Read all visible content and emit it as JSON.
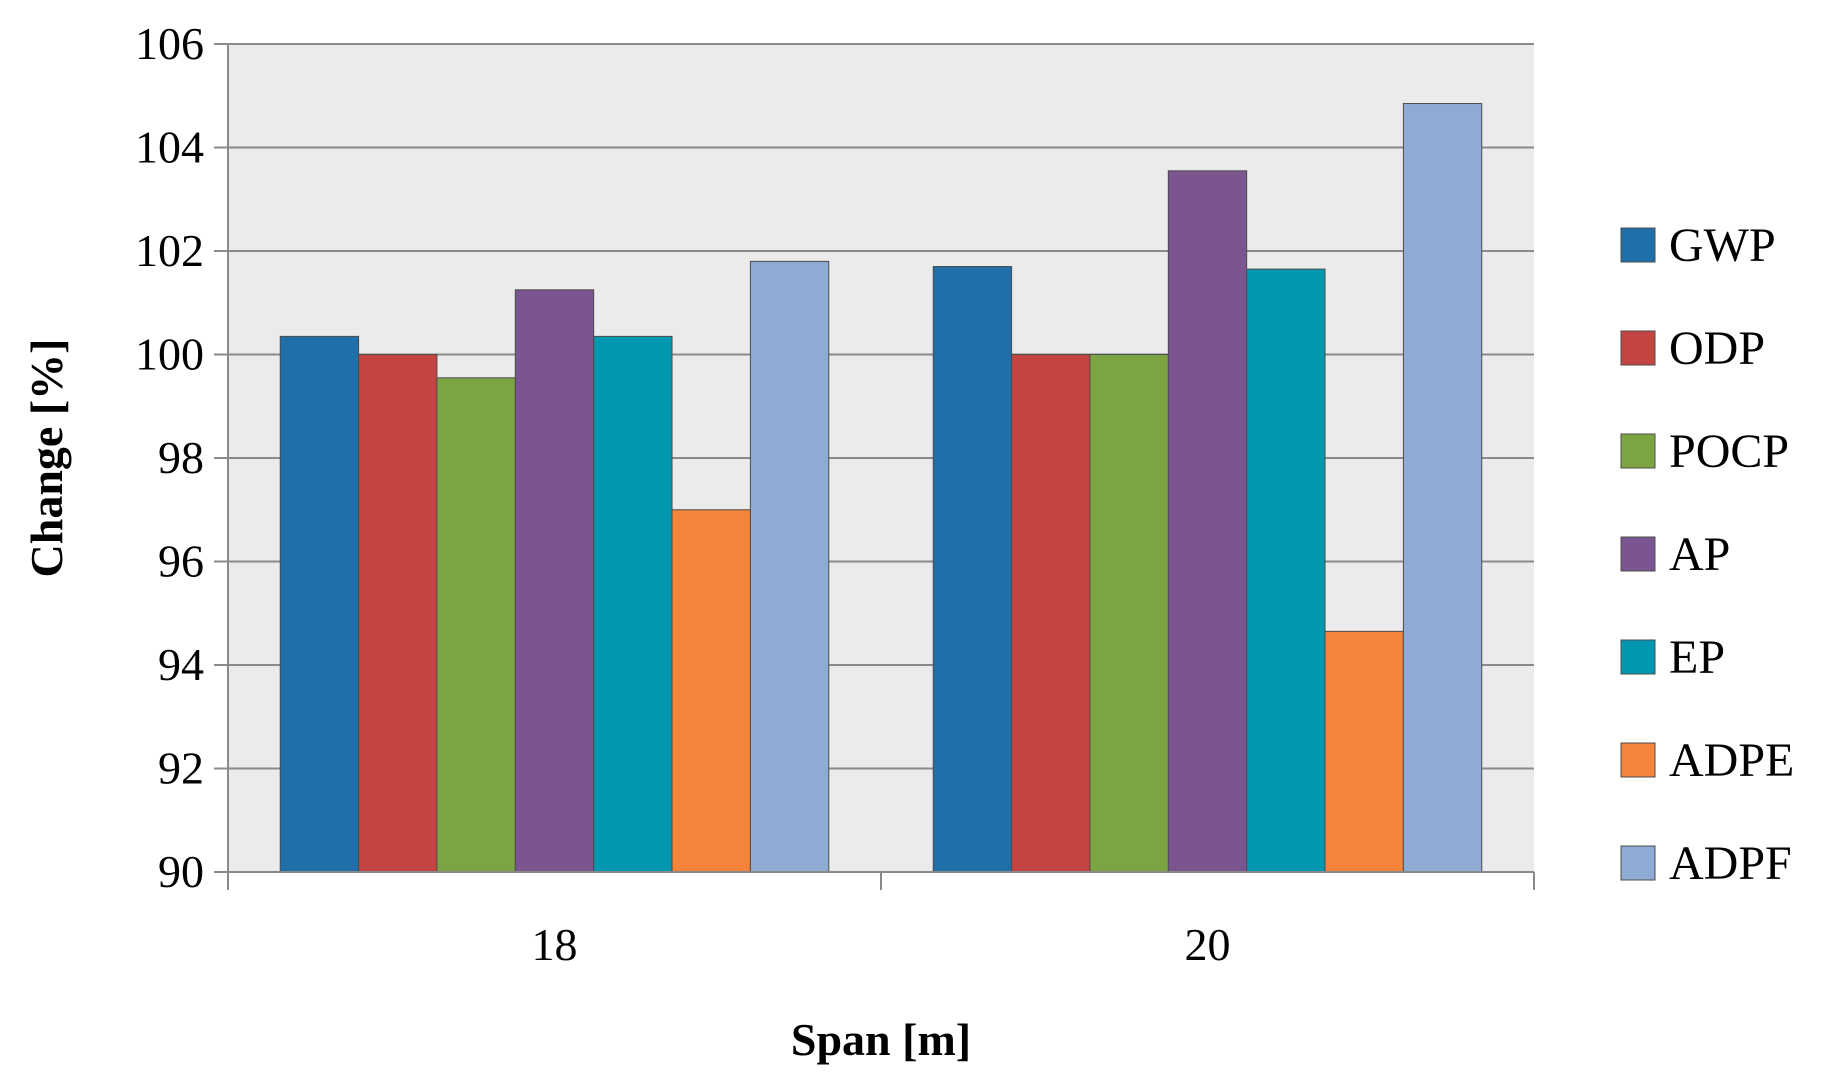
{
  "chart_data": {
    "type": "bar",
    "title": "",
    "xlabel": "Span [m]",
    "ylabel": "Change [%]",
    "categories": [
      "18",
      "20"
    ],
    "ylim": [
      90,
      106
    ],
    "yticks": [
      90,
      92,
      94,
      96,
      98,
      100,
      102,
      104,
      106
    ],
    "grid": true,
    "legend_position": "right",
    "plot_background": "#ebebeb",
    "series": [
      {
        "name": "GWP",
        "color": "#1f6fa8",
        "values": [
          100.35,
          101.7
        ]
      },
      {
        "name": "ODP",
        "color": "#c44441",
        "values": [
          100.0,
          100.0
        ]
      },
      {
        "name": "POCP",
        "color": "#7da443",
        "values": [
          99.55,
          100.0
        ]
      },
      {
        "name": "AP",
        "color": "#7b558f",
        "values": [
          101.25,
          103.55
        ]
      },
      {
        "name": "EP",
        "color": "#0097b0",
        "values": [
          100.35,
          101.65
        ]
      },
      {
        "name": "ADPE",
        "color": "#f3843a",
        "values": [
          97.0,
          94.65
        ]
      },
      {
        "name": "ADPF",
        "color": "#8eacd3",
        "values": [
          101.8,
          104.85
        ]
      }
    ]
  }
}
